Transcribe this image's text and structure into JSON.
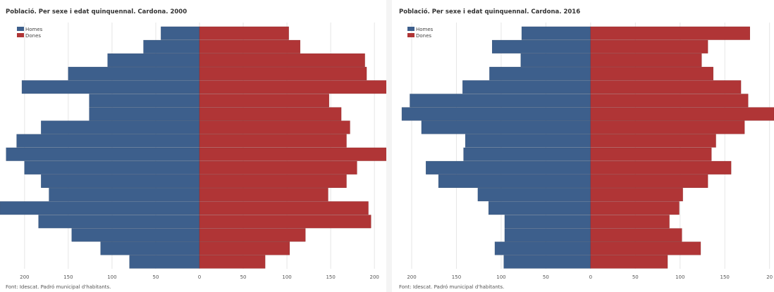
{
  "chart_data": [
    {
      "type": "bar",
      "title": "Població. Per sexe i edat quinquennal. Cardona. 2000",
      "source": "Font: Idescat. Padró municipal d'habitants.",
      "legend": {
        "position": "top-left",
        "entries": [
          "Homes",
          "Dones"
        ]
      },
      "colors": {
        "Homes": "#3d5f8c",
        "Dones": "#b03536"
      },
      "grid": true,
      "xlim": [
        -220,
        220
      ],
      "xticks": [
        "200",
        "150",
        "100",
        "50",
        "0",
        "50",
        "100",
        "150",
        "200"
      ],
      "series": [
        {
          "name": "Homes",
          "values": [
            44,
            64,
            105,
            150,
            203,
            126,
            126,
            181,
            209,
            221,
            200,
            181,
            172,
            228,
            184,
            146,
            113,
            80
          ]
        },
        {
          "name": "Dones",
          "values": [
            102,
            115,
            189,
            191,
            222,
            148,
            162,
            172,
            168,
            222,
            180,
            168,
            147,
            193,
            196,
            121,
            103,
            75
          ]
        }
      ]
    },
    {
      "type": "bar",
      "title": "Població. Per sexe i edat quinquennal. Cardona. 2016",
      "source": "Font: Idescat. Padró municipal d'habitants.",
      "legend": {
        "position": "top-left",
        "entries": [
          "Homes",
          "Dones"
        ]
      },
      "colors": {
        "Homes": "#3d5f8c",
        "Dones": "#b03536"
      },
      "grid": true,
      "xlim": [
        -215,
        205
      ],
      "xticks": [
        "200",
        "150",
        "100",
        "50",
        "0",
        "50",
        "100",
        "150",
        "20"
      ],
      "series": [
        {
          "name": "Homes",
          "values": [
            77,
            110,
            78,
            113,
            143,
            202,
            211,
            189,
            140,
            142,
            184,
            170,
            126,
            114,
            96,
            96,
            107,
            97
          ]
        },
        {
          "name": "Dones",
          "values": [
            178,
            131,
            124,
            137,
            168,
            176,
            205,
            172,
            140,
            135,
            157,
            131,
            103,
            99,
            88,
            102,
            123,
            86
          ]
        }
      ]
    }
  ]
}
